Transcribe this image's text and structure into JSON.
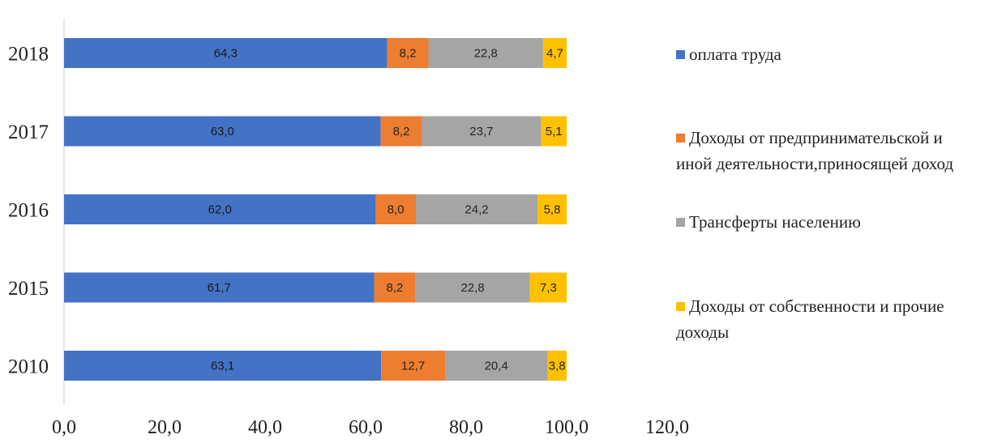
{
  "chart_data": {
    "type": "bar",
    "orientation": "horizontal",
    "stacked": true,
    "title": "",
    "xlabel": "",
    "ylabel": "",
    "categories": [
      "2018",
      "2017",
      "2016",
      "2015",
      "2010"
    ],
    "xlim": [
      0,
      120
    ],
    "x_ticks": [
      "0,0",
      "20,0",
      "40,0",
      "60,0",
      "80,0",
      "100,0",
      "120,0"
    ],
    "grid": false,
    "legend_position": "right",
    "series": [
      {
        "name": "оплата труда",
        "color": "#4472C4",
        "values": [
          64.3,
          63.0,
          62.0,
          61.7,
          63.1
        ],
        "labels": [
          "64,3",
          "63,0",
          "62,0",
          "61,7",
          "63,1"
        ]
      },
      {
        "name": "Доходы от предпринимательской и иной деятельности,приносящей доход",
        "legend_lines": [
          "Доходы от предпринимательской и",
          "иной деятельности,приносящей доход"
        ],
        "color": "#ED7D31",
        "values": [
          8.2,
          8.2,
          8.0,
          8.2,
          12.7
        ],
        "labels": [
          "8,2",
          "8,2",
          "8,0",
          "8,2",
          "12,7"
        ]
      },
      {
        "name": "Трансферты населению",
        "legend_lines": [
          "Трансферты  населению"
        ],
        "color": "#A5A5A5",
        "values": [
          22.8,
          23.7,
          24.2,
          22.8,
          20.4
        ],
        "labels": [
          "22,8",
          "23,7",
          "24,2",
          "22,8",
          "20,4"
        ]
      },
      {
        "name": "Доходы от собственности и прочие доходы",
        "legend_lines": [
          "Доходы от собственности и прочие",
          "доходы"
        ],
        "color": "#FFC000",
        "values": [
          4.7,
          5.1,
          5.8,
          7.3,
          3.8
        ],
        "labels": [
          "4,7",
          "5,1",
          "5,8",
          "7,3",
          "3,8"
        ]
      }
    ]
  }
}
